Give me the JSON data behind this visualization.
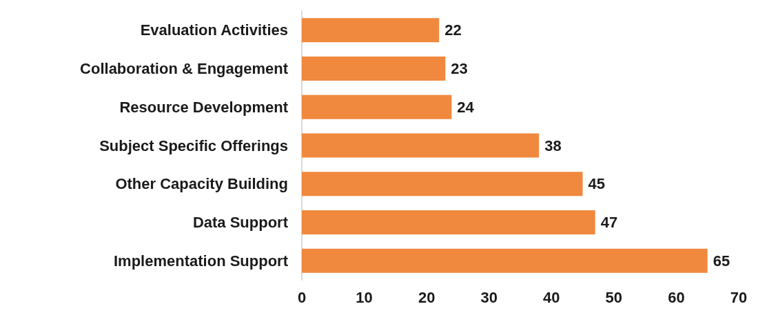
{
  "chart_data": {
    "type": "bar",
    "orientation": "horizontal",
    "categories": [
      "Evaluation Activities",
      "Collaboration & Engagement",
      "Resource Development",
      "Subject Specific Offerings",
      "Other Capacity Building",
      "Data Support",
      "Implementation Support"
    ],
    "values": [
      22,
      23,
      24,
      38,
      45,
      47,
      65
    ],
    "color": "#f0883e",
    "data_labels": true,
    "xlim": [
      0,
      70
    ],
    "xticks": [
      0,
      10,
      20,
      30,
      40,
      50,
      60,
      70
    ]
  }
}
